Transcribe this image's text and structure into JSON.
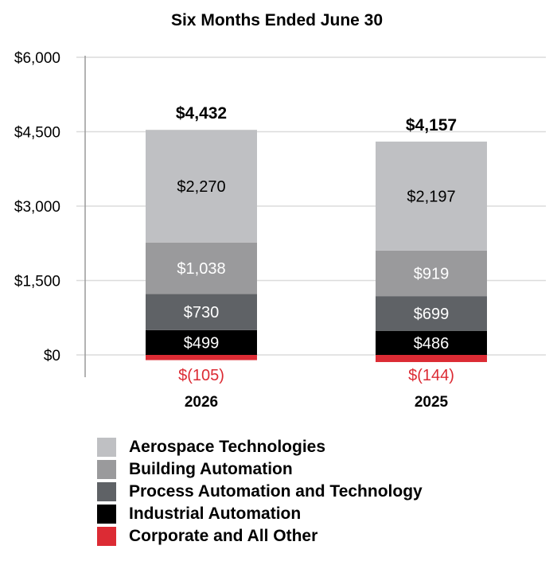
{
  "chart_data": {
    "type": "bar",
    "stacked": true,
    "title": "Six Months Ended June 30",
    "categories": [
      "2026",
      "2025"
    ],
    "totals": [
      "$4,432",
      "$4,157"
    ],
    "ylim": [
      0,
      6000
    ],
    "yticks": [
      0,
      1500,
      3000,
      4500,
      6000
    ],
    "ytick_labels": [
      "$0",
      "$1,500",
      "$3,000",
      "$4,500",
      "$6,000"
    ],
    "grid": true,
    "legend_position": "bottom",
    "series": [
      {
        "name": "Corporate and All Other",
        "values": [
          -105,
          -144
        ],
        "labels": [
          "$(105)",
          "$(144)"
        ],
        "color": "#dc2b34",
        "label_color": "#dc2b34"
      },
      {
        "name": "Industrial Automation",
        "values": [
          499,
          486
        ],
        "labels": [
          "$499",
          "$486"
        ],
        "color": "#000000",
        "label_color": "#ffffff"
      },
      {
        "name": "Process Automation and Technology",
        "values": [
          730,
          699
        ],
        "labels": [
          "$730",
          "$699"
        ],
        "color": "#5f6266",
        "label_color": "#ffffff"
      },
      {
        "name": "Building Automation",
        "values": [
          1038,
          919
        ],
        "labels": [
          "$1,038",
          "$919"
        ],
        "color": "#9a9a9c",
        "label_color": "#ffffff"
      },
      {
        "name": "Aerospace Technologies",
        "values": [
          2270,
          2197
        ],
        "labels": [
          "$2,270",
          "$2,197"
        ],
        "color": "#bfc0c3",
        "label_color": "#000000"
      }
    ]
  },
  "legend": [
    {
      "label": "Aerospace Technologies",
      "color": "#bfc0c3"
    },
    {
      "label": "Building Automation",
      "color": "#9a9a9c"
    },
    {
      "label": "Process Automation and Technology",
      "color": "#5f6266"
    },
    {
      "label": "Industrial Automation",
      "color": "#000000"
    },
    {
      "label": "Corporate and All Other",
      "color": "#dc2b34"
    }
  ]
}
